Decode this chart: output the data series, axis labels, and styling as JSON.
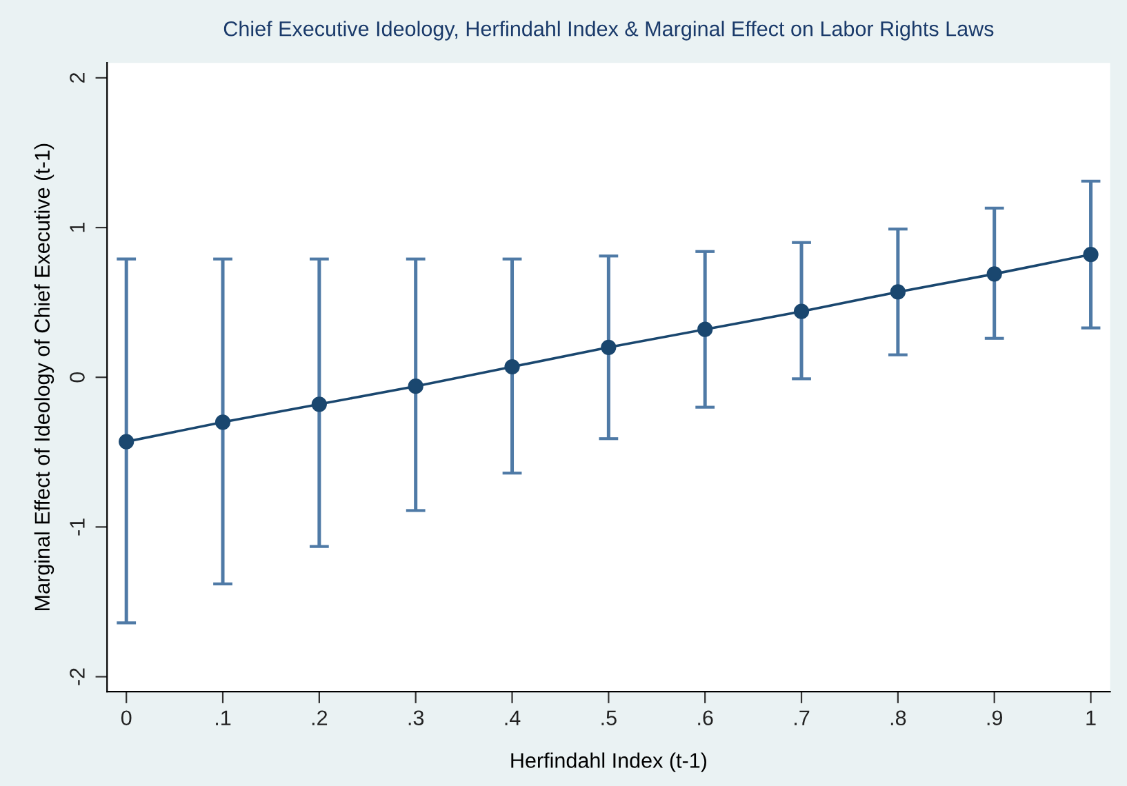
{
  "chart_data": {
    "type": "line",
    "title": "Chief Executive Ideology, Herfindahl Index & Marginal Effect on Labor Rights Laws",
    "xlabel": "Herfindahl Index (t-1)",
    "ylabel": "Marginal Effect of Ideology of Chief Executive (t-1)",
    "x": [
      0,
      0.1,
      0.2,
      0.3,
      0.4,
      0.5,
      0.6,
      0.7,
      0.8,
      0.9,
      1
    ],
    "series": [
      {
        "color": "#1a476f",
        "values": [
          -0.43,
          -0.3,
          -0.18,
          -0.06,
          0.07,
          0.2,
          0.32,
          0.44,
          0.57,
          0.69,
          0.82
        ],
        "errors": [
          [
            -1.64,
            0.79
          ],
          [
            -1.38,
            0.79
          ],
          [
            -1.13,
            0.79
          ],
          [
            -0.89,
            0.79
          ],
          [
            -0.64,
            0.79
          ],
          [
            -0.41,
            0.81
          ],
          [
            -0.2,
            0.84
          ],
          [
            -0.01,
            0.9
          ],
          [
            0.15,
            0.99
          ],
          [
            0.26,
            1.13
          ],
          [
            0.33,
            1.31
          ]
        ]
      }
    ],
    "xlim": [
      -0.02,
      1.02
    ],
    "ylim": [
      -2.1,
      2.1
    ],
    "xticks": [
      0,
      {
        "value": 0.1,
        "label": ".1"
      },
      {
        "value": 0.2,
        "label": ".2"
      },
      {
        "value": 0.3,
        "label": ".3"
      },
      {
        "value": 0.4,
        "label": ".4"
      },
      {
        "value": 0.5,
        "label": ".5"
      },
      {
        "value": 0.6,
        "label": ".6"
      },
      {
        "value": 0.7,
        "label": ".7"
      },
      {
        "value": 0.8,
        "label": ".8"
      },
      {
        "value": 0.9,
        "label": ".9"
      },
      1
    ],
    "yticks": [
      -2,
      -1,
      0,
      1,
      2
    ],
    "marker": "circle",
    "line_style": "solid"
  }
}
